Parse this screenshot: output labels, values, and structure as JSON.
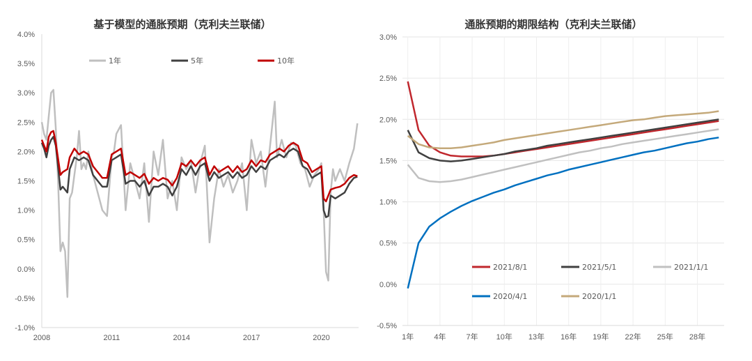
{
  "chart_data": [
    {
      "type": "line",
      "title": "基于模型的通胀预期（克利夫兰联储）",
      "x_ticks": [
        "2008",
        "2011",
        "2014",
        "2017",
        "2020"
      ],
      "y_ticks": [
        "4.0%",
        "3.5%",
        "3.0%",
        "2.5%",
        "2.0%",
        "1.5%",
        "1.0%",
        "0.5%",
        "0.0%",
        "-0.5%",
        "-1.0%"
      ],
      "xlim": [
        2008.0,
        2021.6
      ],
      "ylim": [
        -1.0,
        4.0
      ],
      "legend_position": "top",
      "series": [
        {
          "name": "1年",
          "color": "#bfbfbf",
          "x": [
            2008.0,
            2008.1,
            2008.2,
            2008.3,
            2008.4,
            2008.5,
            2008.6,
            2008.7,
            2008.8,
            2008.9,
            2009.0,
            2009.1,
            2009.2,
            2009.3,
            2009.4,
            2009.5,
            2009.6,
            2009.7,
            2009.8,
            2009.9,
            2010.0,
            2010.2,
            2010.4,
            2010.6,
            2010.8,
            2011.0,
            2011.1,
            2011.2,
            2011.4,
            2011.6,
            2011.8,
            2012.0,
            2012.2,
            2012.4,
            2012.6,
            2012.8,
            2013.0,
            2013.2,
            2013.4,
            2013.6,
            2013.8,
            2014.0,
            2014.2,
            2014.4,
            2014.6,
            2014.8,
            2015.0,
            2015.2,
            2015.4,
            2015.6,
            2015.8,
            2016.0,
            2016.2,
            2016.4,
            2016.6,
            2016.8,
            2017.0,
            2017.2,
            2017.4,
            2017.6,
            2017.8,
            2018.0,
            2018.1,
            2018.3,
            2018.5,
            2018.7,
            2018.9,
            2019.1,
            2019.3,
            2019.5,
            2019.7,
            2019.9,
            2020.0,
            2020.1,
            2020.2,
            2020.3,
            2020.4,
            2020.5,
            2020.6,
            2020.8,
            2021.0,
            2021.2,
            2021.4,
            2021.55
          ],
          "values": [
            2.5,
            2.3,
            2.2,
            2.6,
            3.0,
            3.05,
            2.4,
            1.5,
            0.3,
            0.45,
            0.3,
            -0.48,
            1.2,
            1.3,
            1.6,
            1.9,
            2.35,
            1.7,
            1.8,
            1.7,
            2.0,
            1.6,
            1.3,
            1.0,
            0.9,
            1.9,
            2.0,
            2.3,
            2.45,
            1.0,
            1.8,
            1.5,
            1.2,
            1.8,
            0.8,
            2.0,
            1.6,
            2.2,
            1.2,
            1.5,
            1.0,
            1.9,
            1.7,
            1.85,
            1.3,
            1.8,
            2.1,
            0.45,
            1.2,
            1.7,
            1.4,
            1.6,
            1.3,
            1.5,
            1.8,
            1.0,
            2.2,
            1.8,
            2.0,
            1.4,
            2.1,
            2.85,
            1.9,
            2.2,
            1.9,
            2.15,
            2.1,
            1.8,
            1.7,
            1.4,
            1.6,
            1.7,
            1.8,
            1.0,
            -0.05,
            -0.2,
            1.3,
            1.7,
            1.5,
            1.7,
            1.5,
            1.8,
            2.05,
            2.48
          ]
        },
        {
          "name": "5年",
          "color": "#404040",
          "x": [
            2008.0,
            2008.1,
            2008.2,
            2008.3,
            2008.4,
            2008.5,
            2008.6,
            2008.8,
            2008.9,
            2009.1,
            2009.2,
            2009.4,
            2009.6,
            2009.8,
            2010.0,
            2010.2,
            2010.4,
            2010.6,
            2010.8,
            2011.0,
            2011.2,
            2011.4,
            2011.6,
            2011.8,
            2012.0,
            2012.2,
            2012.4,
            2012.6,
            2012.8,
            2013.0,
            2013.2,
            2013.4,
            2013.6,
            2013.8,
            2014.0,
            2014.2,
            2014.4,
            2014.6,
            2014.8,
            2015.0,
            2015.2,
            2015.4,
            2015.6,
            2015.8,
            2016.0,
            2016.2,
            2016.4,
            2016.6,
            2016.8,
            2017.0,
            2017.2,
            2017.4,
            2017.6,
            2017.8,
            2018.0,
            2018.2,
            2018.4,
            2018.6,
            2018.8,
            2019.0,
            2019.2,
            2019.4,
            2019.6,
            2019.8,
            2020.0,
            2020.1,
            2020.2,
            2020.3,
            2020.4,
            2020.6,
            2020.8,
            2021.0,
            2021.2,
            2021.4,
            2021.55
          ],
          "values": [
            2.15,
            2.05,
            1.9,
            2.1,
            2.2,
            2.25,
            2.1,
            1.35,
            1.4,
            1.3,
            1.7,
            1.9,
            1.85,
            1.9,
            1.85,
            1.6,
            1.5,
            1.4,
            1.4,
            1.85,
            1.9,
            1.95,
            1.45,
            1.5,
            1.5,
            1.4,
            1.5,
            1.25,
            1.4,
            1.4,
            1.45,
            1.4,
            1.25,
            1.4,
            1.7,
            1.6,
            1.75,
            1.6,
            1.75,
            1.8,
            1.5,
            1.65,
            1.55,
            1.6,
            1.65,
            1.55,
            1.65,
            1.55,
            1.6,
            1.75,
            1.65,
            1.75,
            1.7,
            1.85,
            1.9,
            1.95,
            1.9,
            2.0,
            2.05,
            2.0,
            1.75,
            1.7,
            1.55,
            1.6,
            1.65,
            1.0,
            0.88,
            0.9,
            1.25,
            1.2,
            1.25,
            1.3,
            1.45,
            1.55,
            1.57
          ]
        },
        {
          "name": "10年",
          "color": "#c00000",
          "x": [
            2008.0,
            2008.1,
            2008.2,
            2008.3,
            2008.4,
            2008.5,
            2008.6,
            2008.8,
            2008.9,
            2009.1,
            2009.2,
            2009.4,
            2009.6,
            2009.8,
            2010.0,
            2010.2,
            2010.4,
            2010.6,
            2010.8,
            2011.0,
            2011.2,
            2011.4,
            2011.6,
            2011.8,
            2012.0,
            2012.2,
            2012.4,
            2012.6,
            2012.8,
            2013.0,
            2013.2,
            2013.4,
            2013.6,
            2013.8,
            2014.0,
            2014.2,
            2014.4,
            2014.6,
            2014.8,
            2015.0,
            2015.2,
            2015.4,
            2015.6,
            2015.8,
            2016.0,
            2016.2,
            2016.4,
            2016.6,
            2016.8,
            2017.0,
            2017.2,
            2017.4,
            2017.6,
            2017.8,
            2018.0,
            2018.2,
            2018.4,
            2018.6,
            2018.8,
            2019.0,
            2019.2,
            2019.4,
            2019.6,
            2019.8,
            2020.0,
            2020.1,
            2020.2,
            2020.3,
            2020.4,
            2020.6,
            2020.8,
            2021.0,
            2021.2,
            2021.4,
            2021.55
          ],
          "values": [
            2.2,
            2.1,
            2.0,
            2.25,
            2.33,
            2.35,
            2.15,
            1.6,
            1.65,
            1.7,
            1.9,
            2.05,
            1.95,
            2.0,
            1.95,
            1.75,
            1.65,
            1.55,
            1.55,
            1.95,
            2.0,
            2.05,
            1.6,
            1.65,
            1.6,
            1.55,
            1.62,
            1.45,
            1.55,
            1.5,
            1.55,
            1.52,
            1.42,
            1.55,
            1.8,
            1.75,
            1.85,
            1.75,
            1.85,
            1.9,
            1.6,
            1.75,
            1.65,
            1.7,
            1.75,
            1.65,
            1.75,
            1.65,
            1.7,
            1.85,
            1.75,
            1.85,
            1.82,
            1.95,
            2.0,
            2.05,
            2.0,
            2.1,
            2.15,
            2.1,
            1.85,
            1.8,
            1.65,
            1.7,
            1.75,
            1.2,
            1.15,
            1.25,
            1.35,
            1.38,
            1.4,
            1.45,
            1.55,
            1.6,
            1.58
          ]
        }
      ]
    },
    {
      "type": "line",
      "title": "通胀预期的期限结构（克利夫兰联储）",
      "x_ticks": [
        "1年",
        "4年",
        "7年",
        "10年",
        "13年",
        "16年",
        "19年",
        "22年",
        "25年",
        "28年"
      ],
      "y_ticks": [
        "3.0%",
        "2.5%",
        "2.0%",
        "1.5%",
        "1.0%",
        "0.5%",
        "0.0%",
        "-0.5%"
      ],
      "xlim": [
        0.5,
        30.5
      ],
      "ylim": [
        -0.5,
        3.0
      ],
      "legend_position": "bottom",
      "x": [
        1,
        2,
        3,
        4,
        5,
        6,
        7,
        8,
        9,
        10,
        11,
        12,
        13,
        14,
        15,
        16,
        17,
        18,
        19,
        20,
        21,
        22,
        23,
        24,
        25,
        26,
        27,
        28,
        29,
        30
      ],
      "series": [
        {
          "name": "2021/8/1",
          "color": "#c0272d",
          "values": [
            2.46,
            1.87,
            1.68,
            1.6,
            1.56,
            1.55,
            1.55,
            1.55,
            1.56,
            1.58,
            1.6,
            1.62,
            1.64,
            1.66,
            1.68,
            1.7,
            1.72,
            1.74,
            1.76,
            1.78,
            1.8,
            1.82,
            1.84,
            1.86,
            1.88,
            1.9,
            1.92,
            1.94,
            1.96,
            1.98
          ]
        },
        {
          "name": "2021/5/1",
          "color": "#404040",
          "values": [
            1.87,
            1.6,
            1.53,
            1.5,
            1.49,
            1.5,
            1.52,
            1.54,
            1.56,
            1.58,
            1.61,
            1.63,
            1.65,
            1.68,
            1.7,
            1.72,
            1.74,
            1.76,
            1.78,
            1.8,
            1.82,
            1.84,
            1.86,
            1.88,
            1.9,
            1.92,
            1.94,
            1.96,
            1.98,
            2.0
          ]
        },
        {
          "name": "2021/1/1",
          "color": "#c0c0c0",
          "values": [
            1.45,
            1.29,
            1.25,
            1.24,
            1.25,
            1.27,
            1.3,
            1.33,
            1.36,
            1.39,
            1.42,
            1.45,
            1.48,
            1.51,
            1.54,
            1.57,
            1.6,
            1.62,
            1.65,
            1.67,
            1.7,
            1.72,
            1.74,
            1.76,
            1.78,
            1.8,
            1.82,
            1.84,
            1.86,
            1.88
          ]
        },
        {
          "name": "2020/4/1",
          "color": "#0070c0",
          "values": [
            -0.05,
            0.5,
            0.7,
            0.8,
            0.88,
            0.95,
            1.01,
            1.06,
            1.11,
            1.15,
            1.2,
            1.24,
            1.28,
            1.32,
            1.35,
            1.39,
            1.42,
            1.45,
            1.48,
            1.51,
            1.54,
            1.57,
            1.6,
            1.62,
            1.65,
            1.68,
            1.71,
            1.73,
            1.76,
            1.78
          ]
        },
        {
          "name": "2020/1/1",
          "color": "#c4a97a",
          "values": [
            1.8,
            1.7,
            1.66,
            1.65,
            1.65,
            1.66,
            1.68,
            1.7,
            1.72,
            1.75,
            1.77,
            1.79,
            1.81,
            1.83,
            1.85,
            1.87,
            1.89,
            1.91,
            1.93,
            1.95,
            1.97,
            1.99,
            2.0,
            2.02,
            2.04,
            2.05,
            2.06,
            2.07,
            2.08,
            2.1
          ]
        }
      ]
    }
  ]
}
